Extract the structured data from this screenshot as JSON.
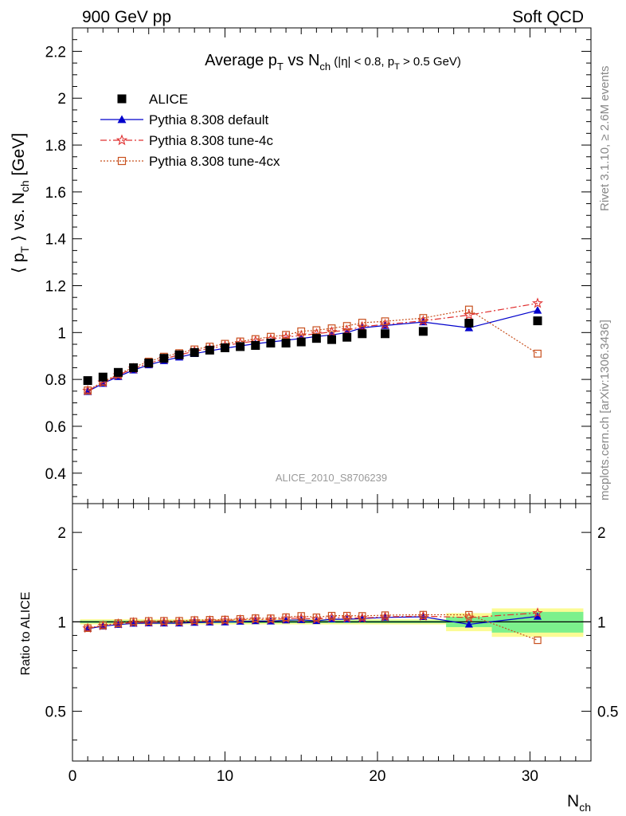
{
  "header": {
    "left": "900 GeV pp",
    "right": "Soft QCD"
  },
  "side_labels": {
    "rivet": "Rivet 3.1.10, ≥ 2.6M events",
    "mcplots": "mcplots.cern.ch [arXiv:1306.3436]"
  },
  "watermark": "ALICE_2010_S8706239",
  "chart_data": [
    {
      "type": "scatter",
      "panel": "main",
      "title": "Average p_T vs N_ch (|η| < 0.8, p_T > 0.5 GeV)",
      "ylabel": "⟨ p_T ⟩ vs. N_ch [GeV]",
      "xlim": [
        0,
        34
      ],
      "ylim": [
        0.27,
        2.3
      ],
      "yticks": [
        0.4,
        0.6,
        0.8,
        1.0,
        1.2,
        1.4,
        1.6,
        1.8,
        2.0,
        2.2
      ],
      "ytick_labels": [
        "0.4",
        "0.6",
        "0.8",
        "1",
        "1.2",
        "1.4",
        "1.6",
        "1.8",
        "2",
        "2.2"
      ],
      "legend_position": "top-left",
      "series": [
        {
          "name": "ALICE",
          "color": "#000000",
          "marker": "filled-square",
          "line": "none",
          "x": [
            1,
            2,
            3,
            4,
            5,
            6,
            7,
            8,
            9,
            10,
            11,
            12,
            13,
            14,
            15,
            16,
            17,
            18,
            19,
            20.5,
            23,
            26,
            30.5
          ],
          "y": [
            0.795,
            0.81,
            0.83,
            0.85,
            0.87,
            0.89,
            0.905,
            0.915,
            0.925,
            0.935,
            0.94,
            0.945,
            0.955,
            0.955,
            0.96,
            0.975,
            0.97,
            0.98,
            0.995,
            0.995,
            1.005,
            1.04,
            1.05
          ]
        },
        {
          "name": "Pythia 8.308 default",
          "color": "#0000cc",
          "marker": "filled-triangle",
          "line": "solid",
          "x": [
            1,
            2,
            3,
            4,
            5,
            6,
            7,
            8,
            9,
            10,
            11,
            12,
            13,
            14,
            15,
            16,
            17,
            18,
            19,
            20.5,
            23,
            26,
            30.5
          ],
          "y": [
            0.748,
            0.783,
            0.812,
            0.84,
            0.862,
            0.88,
            0.895,
            0.91,
            0.922,
            0.933,
            0.943,
            0.952,
            0.96,
            0.967,
            0.975,
            0.983,
            0.99,
            1.0,
            1.02,
            1.03,
            1.045,
            1.02,
            1.095
          ]
        },
        {
          "name": "Pythia 8.308 tune-4c",
          "color": "#e03030",
          "marker": "open-star",
          "line": "dash-dot",
          "x": [
            1,
            2,
            3,
            4,
            5,
            6,
            7,
            8,
            9,
            10,
            11,
            12,
            13,
            14,
            15,
            16,
            17,
            18,
            19,
            20.5,
            23,
            26,
            30.5
          ],
          "y": [
            0.752,
            0.787,
            0.818,
            0.846,
            0.868,
            0.888,
            0.904,
            0.92,
            0.932,
            0.944,
            0.955,
            0.964,
            0.972,
            0.98,
            0.988,
            0.995,
            1.003,
            1.01,
            1.025,
            1.035,
            1.05,
            1.075,
            1.125
          ]
        },
        {
          "name": "Pythia 8.308 tune-4cx",
          "color": "#c8501e",
          "marker": "open-square",
          "line": "dotted",
          "x": [
            1,
            2,
            3,
            4,
            5,
            6,
            7,
            8,
            9,
            10,
            11,
            12,
            13,
            14,
            15,
            16,
            17,
            18,
            19,
            20.5,
            23,
            26,
            30.5
          ],
          "y": [
            0.753,
            0.79,
            0.822,
            0.852,
            0.876,
            0.897,
            0.912,
            0.928,
            0.94,
            0.952,
            0.962,
            0.972,
            0.982,
            0.99,
            1.005,
            1.01,
            1.018,
            1.028,
            1.042,
            1.048,
            1.062,
            1.098,
            0.91
          ]
        }
      ]
    },
    {
      "type": "scatter",
      "panel": "ratio",
      "ylabel": "Ratio to ALICE",
      "xlabel": "N_ch",
      "xlim": [
        0,
        34
      ],
      "ylim": [
        0.34,
        2.5
      ],
      "y_scale": "log",
      "xticks": [
        0,
        10,
        20,
        30
      ],
      "xtick_labels": [
        "0",
        "10",
        "20",
        "30"
      ],
      "yticks": [
        0.5,
        1,
        2
      ],
      "ytick_labels": [
        "0.5",
        "1",
        "2"
      ],
      "uncertainty_bands": {
        "inner_color": "#7cf08c",
        "outer_color": "#fbfb94",
        "bins": [
          {
            "x0": 0.5,
            "x1": 24.5,
            "inner": 0.01,
            "outer": 0.02
          },
          {
            "x0": 24.5,
            "x1": 27.5,
            "inner": 0.04,
            "outer": 0.07
          },
          {
            "x0": 27.5,
            "x1": 33.5,
            "inner": 0.08,
            "outer": 0.11
          }
        ]
      },
      "series": [
        {
          "name": "Pythia 8.308 default",
          "x": [
            1,
            2,
            3,
            4,
            5,
            6,
            7,
            8,
            9,
            10,
            11,
            12,
            13,
            14,
            15,
            16,
            17,
            18,
            19,
            20.5,
            23,
            26,
            30.5
          ],
          "y": [
            0.948,
            0.967,
            0.979,
            0.988,
            0.99,
            0.989,
            0.989,
            0.995,
            0.997,
            0.998,
            1.003,
            1.007,
            1.005,
            1.013,
            1.016,
            1.008,
            1.021,
            1.02,
            1.025,
            1.035,
            1.04,
            0.981,
            1.043
          ]
        },
        {
          "name": "Pythia 8.308 tune-4c",
          "x": [
            1,
            2,
            3,
            4,
            5,
            6,
            7,
            8,
            9,
            10,
            11,
            12,
            13,
            14,
            15,
            16,
            17,
            18,
            19,
            20.5,
            23,
            26,
            30.5
          ],
          "y": [
            0.951,
            0.97,
            0.985,
            0.995,
            0.998,
            0.998,
            0.999,
            1.005,
            1.008,
            1.01,
            1.016,
            1.02,
            1.018,
            1.026,
            1.029,
            1.021,
            1.034,
            1.031,
            1.03,
            1.04,
            1.045,
            1.034,
            1.071
          ]
        },
        {
          "name": "Pythia 8.308 tune-4cx",
          "x": [
            1,
            2,
            3,
            4,
            5,
            6,
            7,
            8,
            9,
            10,
            11,
            12,
            13,
            14,
            15,
            16,
            17,
            18,
            19,
            20.5,
            23,
            26,
            30.5
          ],
          "y": [
            0.952,
            0.974,
            0.99,
            1.002,
            1.007,
            1.008,
            1.008,
            1.014,
            1.016,
            1.018,
            1.023,
            1.029,
            1.028,
            1.037,
            1.047,
            1.036,
            1.049,
            1.049,
            1.047,
            1.053,
            1.057,
            1.056,
            0.867
          ]
        }
      ]
    }
  ]
}
